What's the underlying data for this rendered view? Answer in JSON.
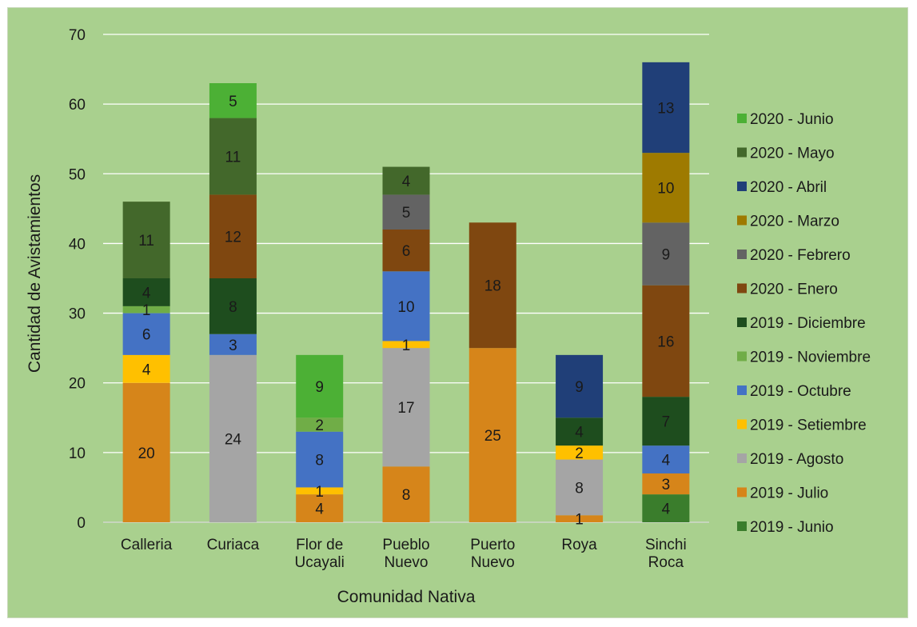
{
  "chart_data": {
    "type": "bar",
    "stacked": true,
    "categories": [
      [
        "Calleria"
      ],
      [
        "Curiaca"
      ],
      [
        "Flor de",
        "Ucayali"
      ],
      [
        "Pueblo",
        "Nuevo"
      ],
      [
        "Puerto",
        "Nuevo"
      ],
      [
        "Roya"
      ],
      [
        "Sinchi",
        "Roca"
      ]
    ],
    "xlabel": "Comunidad Nativa",
    "ylabel": "Cantidad de Avistamientos",
    "ylim": [
      0,
      70
    ],
    "yticks": [
      0,
      10,
      20,
      30,
      40,
      50,
      60,
      70
    ],
    "grid": true,
    "legend_position": "right",
    "series": [
      {
        "name": "2019 - Junio",
        "color": "#3a7d2c",
        "values": [
          0,
          0,
          0,
          0,
          0,
          0,
          4
        ]
      },
      {
        "name": "2019 - Julio",
        "color": "#d6851a",
        "values": [
          20,
          0,
          4,
          8,
          25,
          1,
          3
        ]
      },
      {
        "name": "2019 - Agosto",
        "color": "#a5a5a5",
        "values": [
          0,
          24,
          0,
          17,
          0,
          8,
          0
        ]
      },
      {
        "name": "2019 - Setiembre",
        "color": "#ffc000",
        "values": [
          4,
          0,
          1,
          1,
          0,
          2,
          0
        ]
      },
      {
        "name": "2019 - Octubre",
        "color": "#4472c4",
        "values": [
          6,
          3,
          8,
          10,
          0,
          0,
          4
        ]
      },
      {
        "name": "2019 - Noviembre",
        "color": "#70ad47",
        "values": [
          1,
          0,
          2,
          0,
          0,
          0,
          0
        ]
      },
      {
        "name": "2019 - Diciembre",
        "color": "#1e4d1e",
        "values": [
          4,
          8,
          0,
          0,
          0,
          4,
          7
        ]
      },
      {
        "name": "2020 - Enero",
        "color": "#7f4710",
        "values": [
          0,
          12,
          0,
          6,
          18,
          0,
          16
        ]
      },
      {
        "name": "2020 - Febrero",
        "color": "#636363",
        "values": [
          0,
          0,
          0,
          5,
          0,
          0,
          9
        ]
      },
      {
        "name": "2020 - Marzo",
        "color": "#9e7a00",
        "values": [
          0,
          0,
          0,
          0,
          0,
          0,
          10
        ]
      },
      {
        "name": "2020 - Abril",
        "color": "#203f78",
        "values": [
          0,
          0,
          0,
          0,
          0,
          9,
          13
        ]
      },
      {
        "name": "2020 - Mayo",
        "color": "#43682b",
        "values": [
          11,
          11,
          0,
          4,
          0,
          0,
          0
        ]
      },
      {
        "name": "2020 - Junio",
        "color": "#4cb035",
        "values": [
          0,
          5,
          9,
          0,
          0,
          0,
          0
        ]
      }
    ],
    "colors": {
      "panel_background": "#a9d08e",
      "gridline": "#ffffff"
    }
  }
}
